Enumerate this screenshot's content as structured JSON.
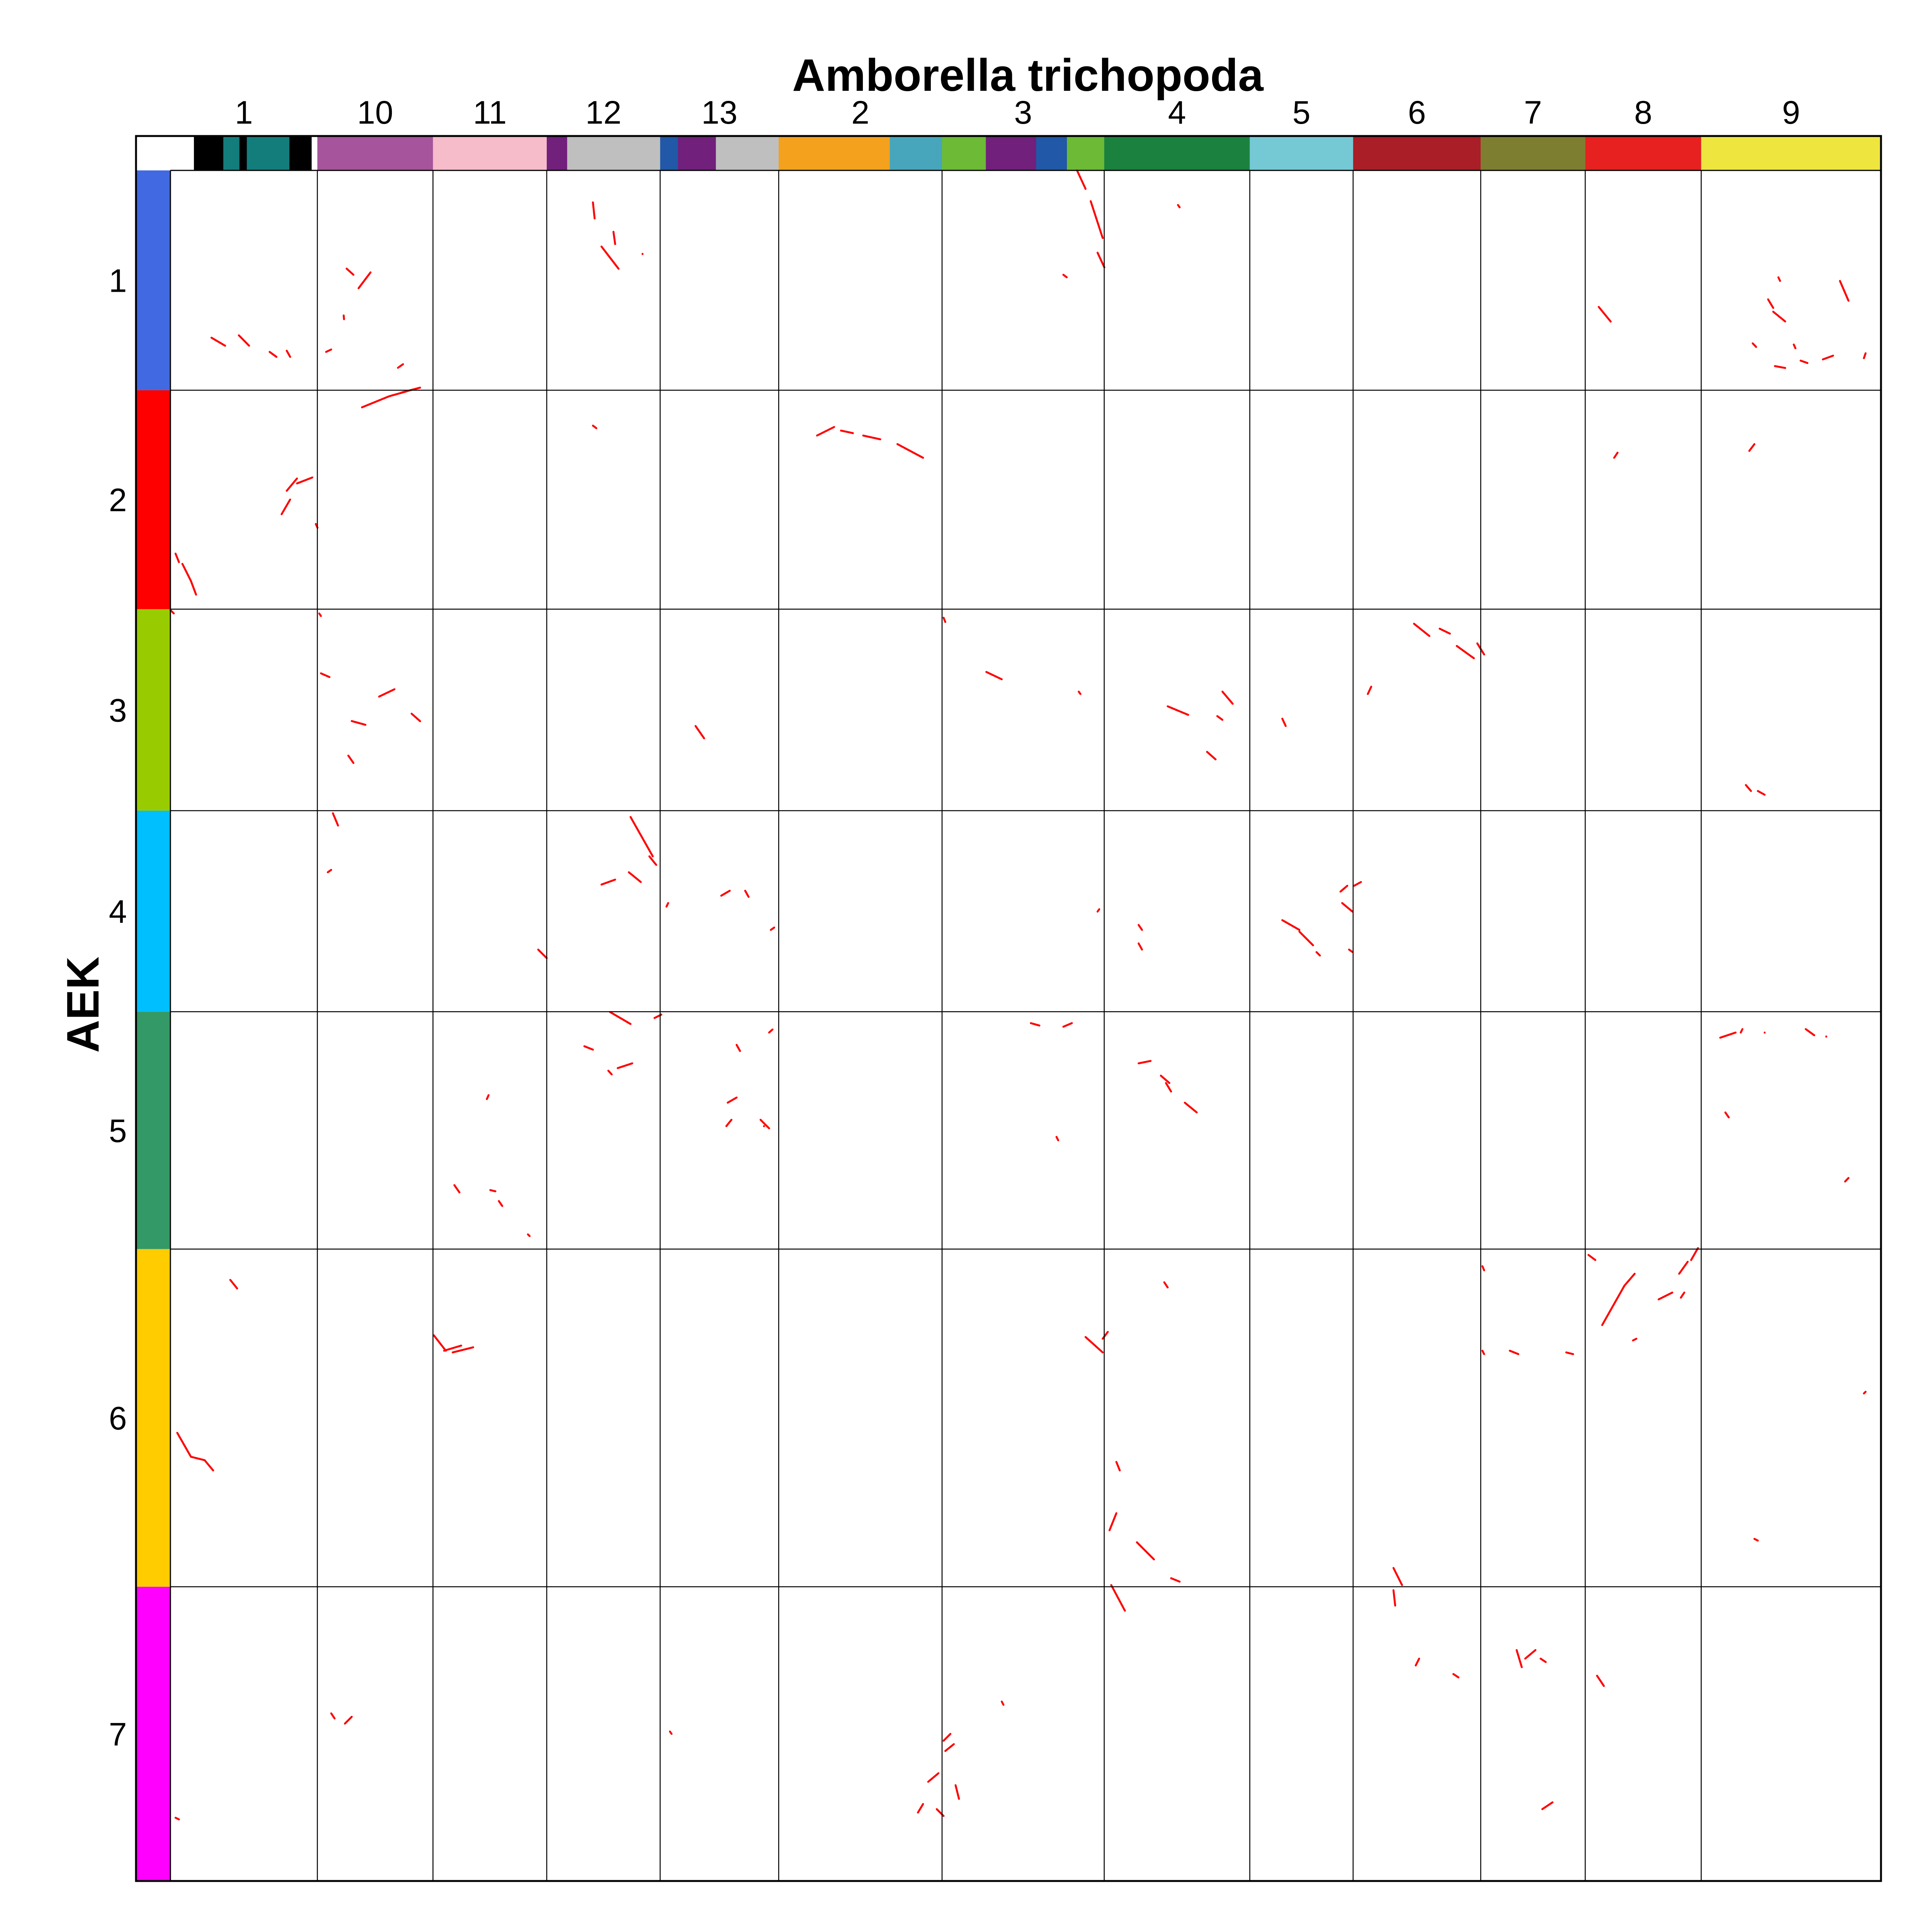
{
  "chart_data": {
    "type": "scatter",
    "title": "Amborella trichopoda",
    "xlabel": "Amborella trichopoda",
    "ylabel": "AEK",
    "grid": true,
    "x_chromosomes": [
      {
        "label": "1",
        "color": "#000000",
        "bands": [
          {
            "color": "#ffffff",
            "frac": 0.16
          },
          {
            "color": "#000000",
            "frac": 0.2
          },
          {
            "color": "#137d7c",
            "frac": 0.11
          },
          {
            "color": "#000000",
            "frac": 0.05
          },
          {
            "color": "#137d7c",
            "frac": 0.29
          },
          {
            "color": "#000000",
            "frac": 0.15
          }
        ]
      },
      {
        "label": "10",
        "color": "#a6549b"
      },
      {
        "label": "11",
        "color": "#f6bcc9"
      },
      {
        "label": "12",
        "color": "#bfbfbf",
        "bands": [
          {
            "color": "#71207c",
            "frac": 0.18
          },
          {
            "color": "#bfbfbf",
            "frac": 0.82
          }
        ]
      },
      {
        "label": "13",
        "color": "#bfbfbf",
        "bands": [
          {
            "color": "#2158a8",
            "frac": 0.15
          },
          {
            "color": "#71207c",
            "frac": 0.32
          },
          {
            "color": "#bfbfbf",
            "frac": 0.53
          }
        ]
      },
      {
        "label": "2",
        "color": "#f4a11d",
        "bands": [
          {
            "color": "#f4a11d",
            "frac": 0.68
          },
          {
            "color": "#47a6bb",
            "frac": 0.32
          }
        ]
      },
      {
        "label": "3",
        "color": "#6cba35",
        "bands": [
          {
            "color": "#6cba35",
            "frac": 0.27
          },
          {
            "color": "#71207c",
            "frac": 0.31
          },
          {
            "color": "#2158a8",
            "frac": 0.19
          },
          {
            "color": "#6cba35",
            "frac": 0.23
          }
        ]
      },
      {
        "label": "4",
        "color": "#1a823e"
      },
      {
        "label": "5",
        "color": "#75c9d4"
      },
      {
        "label": "6",
        "color": "#aa1e27"
      },
      {
        "label": "7",
        "color": "#7d7e30"
      },
      {
        "label": "8",
        "color": "#e6211f"
      },
      {
        "label": "9",
        "color": "#eee63e"
      }
    ],
    "y_chromosomes": [
      {
        "label": "1",
        "color": "#4169e1"
      },
      {
        "label": "2",
        "color": "#ff0000"
      },
      {
        "label": "3",
        "color": "#99cc00"
      },
      {
        "label": "4",
        "color": "#00bfff"
      },
      {
        "label": "5",
        "color": "#339966"
      },
      {
        "label": "6",
        "color": "#ffcc00"
      },
      {
        "label": "7",
        "color": "#ff00ff"
      }
    ],
    "x_cum_bounds": [
      0,
      0.0859,
      0.1535,
      0.22,
      0.2863,
      0.3556,
      0.4511,
      0.5459,
      0.631,
      0.6914,
      0.766,
      0.8271,
      0.8949,
      1.0
    ],
    "y_cum_bounds": [
      0,
      0.1285,
      0.2565,
      0.3743,
      0.4918,
      0.6306,
      0.828,
      1.0
    ],
    "dot_color": "#ff0000",
    "segments": [
      [
        0.024,
        0.0978,
        0.032,
        0.1025
      ],
      [
        0.04,
        0.0964,
        0.046,
        0.1025
      ],
      [
        0.058,
        0.1061,
        0.062,
        0.109
      ],
      [
        0.068,
        0.1054,
        0.07,
        0.109
      ],
      [
        0.133,
        0.1154,
        0.136,
        0.1133
      ],
      [
        0.091,
        0.1061,
        0.094,
        0.1047
      ],
      [
        0.103,
        0.0574,
        0.107,
        0.061
      ],
      [
        0.11,
        0.0689,
        0.117,
        0.0596
      ],
      [
        0.247,
        0.0187,
        0.248,
        0.0281
      ],
      [
        0.259,
        0.0359,
        0.26,
        0.0431
      ],
      [
        0.252,
        0.0445,
        0.262,
        0.0575
      ],
      [
        0.276,
        0.0488,
        0.276,
        0.0489
      ],
      [
        0.53,
        0.0,
        0.535,
        0.0108
      ],
      [
        0.538,
        0.018,
        0.545,
        0.0395
      ],
      [
        0.542,
        0.0481,
        0.546,
        0.0567
      ],
      [
        0.522,
        0.061,
        0.524,
        0.0625
      ],
      [
        0.589,
        0.0202,
        0.59,
        0.0216
      ],
      [
        0.835,
        0.0798,
        0.842,
        0.0884
      ],
      [
        0.1013,
        0.0848,
        0.1015,
        0.087
      ],
      [
        0.976,
        0.0646,
        0.981,
        0.0762
      ],
      [
        0.934,
        0.0754,
        0.937,
        0.0804
      ],
      [
        0.937,
        0.0826,
        0.944,
        0.0883
      ],
      [
        0.938,
        0.1144,
        0.944,
        0.1155
      ],
      [
        0.953,
        0.1112,
        0.957,
        0.1126
      ],
      [
        0.966,
        0.1105,
        0.972,
        0.1083
      ],
      [
        0.99,
        0.1098,
        0.991,
        0.1069
      ],
      [
        0.949,
        0.1018,
        0.95,
        0.104
      ],
      [
        0.94,
        0.0625,
        0.941,
        0.0646
      ],
      [
        0.925,
        0.1011,
        0.927,
        0.1032
      ],
      [
        0.112,
        0.1385,
        0.128,
        0.132
      ],
      [
        0.128,
        0.132,
        0.138,
        0.1292
      ],
      [
        0.135,
        0.1299,
        0.146,
        0.127
      ],
      [
        0.068,
        0.1873,
        0.074,
        0.1801
      ],
      [
        0.065,
        0.201,
        0.07,
        0.1924
      ],
      [
        0.074,
        0.183,
        0.083,
        0.1795
      ],
      [
        0.085,
        0.2067,
        0.086,
        0.2089
      ],
      [
        0.247,
        0.1492,
        0.249,
        0.1507
      ],
      [
        0.378,
        0.155,
        0.388,
        0.15
      ],
      [
        0.392,
        0.1521,
        0.399,
        0.1536
      ],
      [
        0.405,
        0.155,
        0.415,
        0.1572
      ],
      [
        0.425,
        0.16,
        0.44,
        0.168
      ],
      [
        0.003,
        0.224,
        0.005,
        0.229
      ],
      [
        0.007,
        0.23,
        0.012,
        0.24
      ],
      [
        0.012,
        0.24,
        0.015,
        0.248
      ],
      [
        0.844,
        0.168,
        0.846,
        0.165
      ],
      [
        0.923,
        0.164,
        0.926,
        0.16
      ],
      [
        0.087,
        0.259,
        0.088,
        0.2605
      ],
      [
        0.452,
        0.2615,
        0.453,
        0.264
      ],
      [
        0.0,
        0.257,
        0.002,
        0.259
      ],
      [
        0.088,
        0.294,
        0.093,
        0.2962
      ],
      [
        0.122,
        0.3076,
        0.131,
        0.3033
      ],
      [
        0.141,
        0.3176,
        0.146,
        0.322
      ],
      [
        0.106,
        0.3219,
        0.114,
        0.3241
      ],
      [
        0.104,
        0.3421,
        0.107,
        0.3464
      ],
      [
        0.307,
        0.3248,
        0.312,
        0.332
      ],
      [
        0.477,
        0.2932,
        0.486,
        0.2975
      ],
      [
        0.531,
        0.3047,
        0.532,
        0.3061
      ],
      [
        0.583,
        0.3133,
        0.595,
        0.3183
      ],
      [
        0.612,
        0.319,
        0.615,
        0.3212
      ],
      [
        0.615,
        0.3047,
        0.621,
        0.3118
      ],
      [
        0.606,
        0.3399,
        0.611,
        0.3443
      ],
      [
        0.65,
        0.3205,
        0.652,
        0.3248
      ],
      [
        0.727,
        0.265,
        0.736,
        0.2722
      ],
      [
        0.742,
        0.2679,
        0.748,
        0.2708
      ],
      [
        0.752,
        0.278,
        0.762,
        0.2852
      ],
      [
        0.764,
        0.2765,
        0.768,
        0.283
      ],
      [
        0.7,
        0.3061,
        0.702,
        0.3018
      ],
      [
        0.921,
        0.3593,
        0.924,
        0.3628
      ],
      [
        0.928,
        0.3628,
        0.932,
        0.365
      ],
      [
        0.095,
        0.3758,
        0.098,
        0.383
      ],
      [
        0.092,
        0.4103,
        0.094,
        0.4089
      ],
      [
        0.269,
        0.378,
        0.282,
        0.401
      ],
      [
        0.28,
        0.401,
        0.284,
        0.406
      ],
      [
        0.268,
        0.4103,
        0.275,
        0.416
      ],
      [
        0.252,
        0.4175,
        0.26,
        0.4146
      ],
      [
        0.29,
        0.4304,
        0.291,
        0.4283
      ],
      [
        0.322,
        0.424,
        0.327,
        0.4211
      ],
      [
        0.336,
        0.4211,
        0.338,
        0.4247
      ],
      [
        0.351,
        0.444,
        0.353,
        0.4426
      ],
      [
        0.215,
        0.4555,
        0.22,
        0.4605
      ],
      [
        0.542,
        0.4333,
        0.543,
        0.4319
      ],
      [
        0.566,
        0.4519,
        0.568,
        0.4555
      ],
      [
        0.566,
        0.4411,
        0.568,
        0.444
      ],
      [
        0.65,
        0.4383,
        0.66,
        0.444
      ],
      [
        0.66,
        0.445,
        0.668,
        0.453
      ],
      [
        0.67,
        0.457,
        0.672,
        0.459
      ],
      [
        0.689,
        0.4555,
        0.691,
        0.4569
      ],
      [
        0.684,
        0.4216,
        0.688,
        0.4182
      ],
      [
        0.692,
        0.4182,
        0.696,
        0.416
      ],
      [
        0.685,
        0.4283,
        0.691,
        0.4333
      ],
      [
        0.257,
        0.492,
        0.269,
        0.499
      ],
      [
        0.283,
        0.4955,
        0.287,
        0.4935
      ],
      [
        0.242,
        0.512,
        0.247,
        0.514
      ],
      [
        0.2615,
        0.5248,
        0.27,
        0.522
      ],
      [
        0.256,
        0.5263,
        0.258,
        0.5285
      ],
      [
        0.185,
        0.5429,
        0.186,
        0.5406
      ],
      [
        0.166,
        0.5932,
        0.169,
        0.5975
      ],
      [
        0.187,
        0.5961,
        0.19,
        0.5968
      ],
      [
        0.192,
        0.6025,
        0.194,
        0.6054
      ],
      [
        0.209,
        0.622,
        0.21,
        0.623
      ],
      [
        0.331,
        0.5112,
        0.333,
        0.5148
      ],
      [
        0.35,
        0.504,
        0.352,
        0.5022
      ],
      [
        0.3258,
        0.545,
        0.331,
        0.542
      ],
      [
        0.345,
        0.555,
        0.35,
        0.56
      ],
      [
        0.325,
        0.5587,
        0.328,
        0.555
      ],
      [
        0.347,
        0.5587,
        0.347,
        0.5588
      ],
      [
        0.503,
        0.4985,
        0.508,
        0.4999
      ],
      [
        0.522,
        0.5006,
        0.527,
        0.4985
      ],
      [
        0.566,
        0.522,
        0.573,
        0.5206
      ],
      [
        0.579,
        0.5292,
        0.584,
        0.5335
      ],
      [
        0.582,
        0.5335,
        0.585,
        0.5385
      ],
      [
        0.593,
        0.545,
        0.6,
        0.5507
      ],
      [
        0.518,
        0.565,
        0.519,
        0.567
      ],
      [
        0.906,
        0.507,
        0.915,
        0.504
      ],
      [
        0.918,
        0.504,
        0.919,
        0.502
      ],
      [
        0.932,
        0.504,
        0.932,
        0.5041
      ],
      [
        0.956,
        0.502,
        0.961,
        0.5056
      ],
      [
        0.968,
        0.5063,
        0.968,
        0.5064
      ],
      [
        0.909,
        0.5507,
        0.911,
        0.5536
      ],
      [
        0.979,
        0.5911,
        0.981,
        0.589
      ],
      [
        0.035,
        0.6486,
        0.039,
        0.6536
      ],
      [
        0.154,
        0.681,
        0.161,
        0.69
      ],
      [
        0.16,
        0.69,
        0.17,
        0.687
      ],
      [
        0.165,
        0.691,
        0.177,
        0.688
      ],
      [
        0.004,
        0.738,
        0.012,
        0.752
      ],
      [
        0.012,
        0.752,
        0.02,
        0.754
      ],
      [
        0.02,
        0.754,
        0.025,
        0.76
      ],
      [
        0.565,
        0.802,
        0.575,
        0.812
      ],
      [
        0.585,
        0.823,
        0.59,
        0.825
      ],
      [
        0.535,
        0.682,
        0.545,
        0.691
      ],
      [
        0.545,
        0.683,
        0.548,
        0.679
      ],
      [
        0.553,
        0.755,
        0.555,
        0.76
      ],
      [
        0.581,
        0.65,
        0.583,
        0.653
      ],
      [
        0.549,
        0.795,
        0.553,
        0.785
      ],
      [
        0.767,
        0.6406,
        0.768,
        0.643
      ],
      [
        0.767,
        0.69,
        0.768,
        0.692
      ],
      [
        0.783,
        0.69,
        0.788,
        0.692
      ],
      [
        0.816,
        0.691,
        0.82,
        0.692
      ],
      [
        0.829,
        0.634,
        0.833,
        0.637
      ],
      [
        0.837,
        0.675,
        0.85,
        0.652
      ],
      [
        0.85,
        0.652,
        0.856,
        0.645
      ],
      [
        0.87,
        0.66,
        0.878,
        0.656
      ],
      [
        0.882,
        0.645,
        0.887,
        0.638
      ],
      [
        0.889,
        0.637,
        0.893,
        0.63
      ],
      [
        0.883,
        0.659,
        0.885,
        0.656
      ],
      [
        0.855,
        0.684,
        0.857,
        0.683
      ],
      [
        0.99,
        0.715,
        0.991,
        0.714
      ],
      [
        0.926,
        0.8,
        0.928,
        0.801
      ],
      [
        0.094,
        0.902,
        0.096,
        0.905
      ],
      [
        0.102,
        0.908,
        0.106,
        0.904
      ],
      [
        0.292,
        0.9126,
        0.293,
        0.914
      ],
      [
        0.452,
        0.918,
        0.456,
        0.914
      ],
      [
        0.453,
        0.924,
        0.458,
        0.92
      ],
      [
        0.443,
        0.942,
        0.449,
        0.937
      ],
      [
        0.437,
        0.96,
        0.44,
        0.955
      ],
      [
        0.459,
        0.944,
        0.461,
        0.952
      ],
      [
        0.448,
        0.958,
        0.452,
        0.962
      ],
      [
        0.486,
        0.8951,
        0.487,
        0.897
      ],
      [
        0.55,
        0.827,
        0.558,
        0.842
      ],
      [
        0.715,
        0.817,
        0.72,
        0.827
      ],
      [
        0.715,
        0.83,
        0.716,
        0.839
      ],
      [
        0.728,
        0.874,
        0.73,
        0.87
      ],
      [
        0.75,
        0.879,
        0.753,
        0.881
      ],
      [
        0.787,
        0.865,
        0.79,
        0.875
      ],
      [
        0.792,
        0.87,
        0.798,
        0.865
      ],
      [
        0.801,
        0.87,
        0.804,
        0.872
      ],
      [
        0.834,
        0.88,
        0.838,
        0.886
      ],
      [
        0.802,
        0.958,
        0.808,
        0.954
      ],
      [
        0.003,
        0.963,
        0.005,
        0.964
      ]
    ]
  }
}
